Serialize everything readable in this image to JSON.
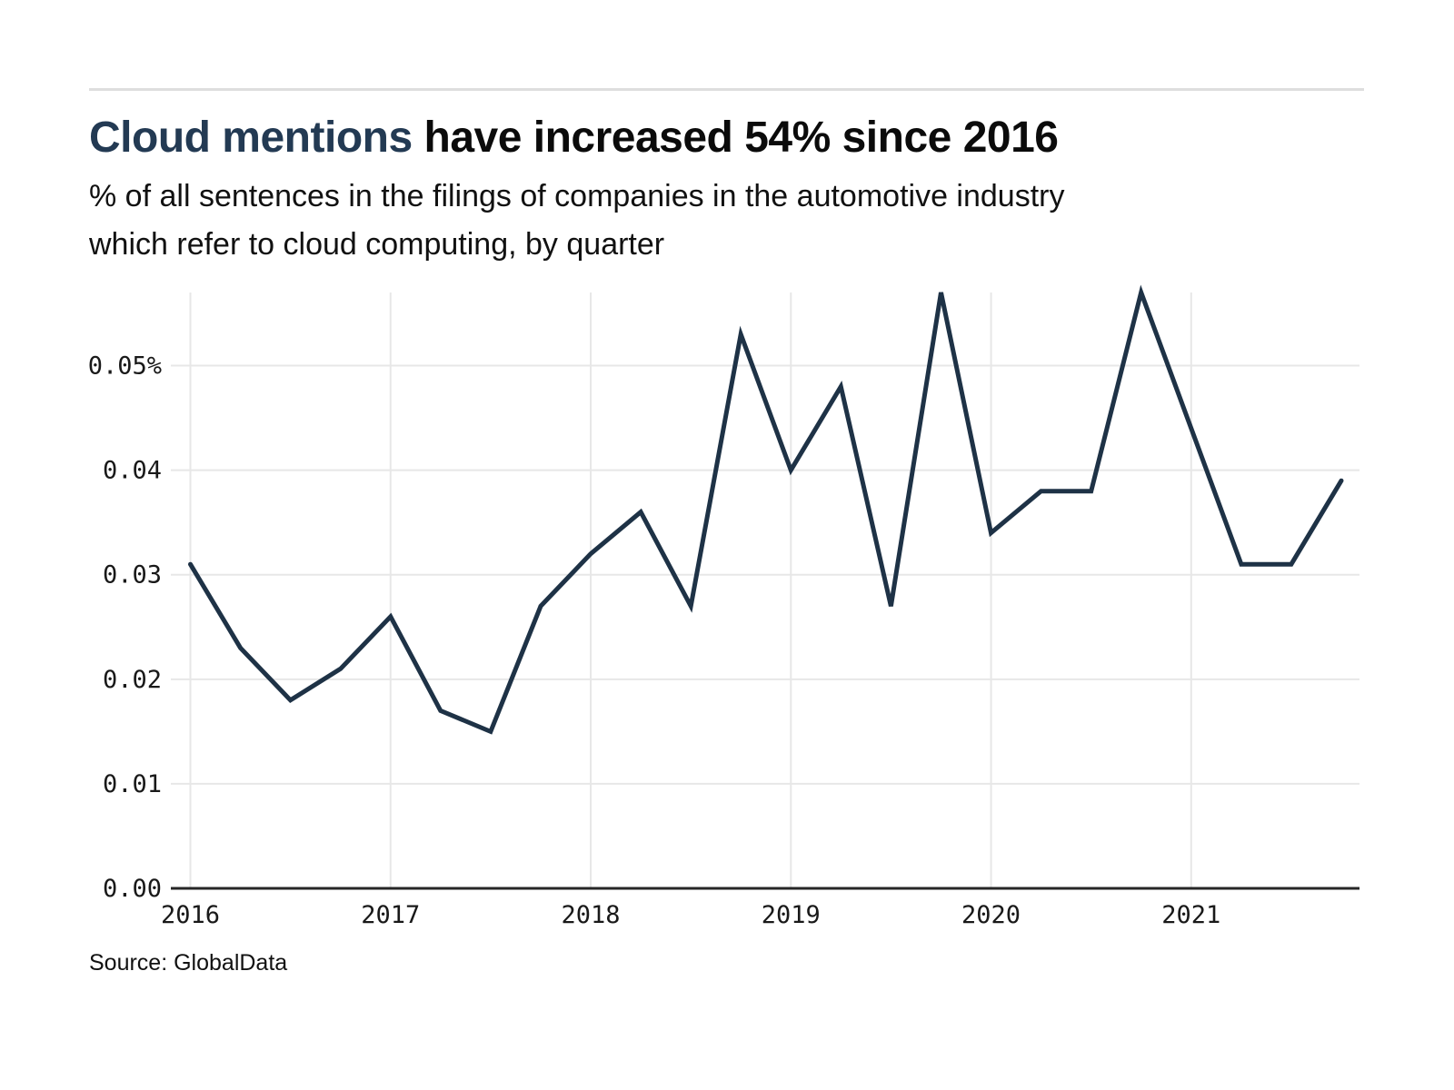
{
  "page": {
    "title_accent": "Cloud mentions",
    "title_rest": " have increased 54% since 2016",
    "subtitle_line1": "% of all sentences in the filings of companies in the automotive industry",
    "subtitle_line2": "which refer to cloud computing, by quarter",
    "source": "Source: GlobalData"
  },
  "colors": {
    "accent": "#233a53",
    "line": "#1e3246",
    "grid": "#e7e7e7",
    "axis": "#262626",
    "divider": "#dedede",
    "tick_text": "#191919"
  },
  "chart_data": {
    "type": "line",
    "title": "Cloud mentions have increased 54% since 2016",
    "subtitle": "% of all sentences in the filings of companies in the automotive industry which refer to cloud computing, by quarter",
    "source": "Source: GlobalData",
    "x": [
      "2016 Q1",
      "2016 Q2",
      "2016 Q3",
      "2016 Q4",
      "2017 Q1",
      "2017 Q2",
      "2017 Q3",
      "2017 Q4",
      "2018 Q1",
      "2018 Q2",
      "2018 Q3",
      "2018 Q4",
      "2019 Q1",
      "2019 Q2",
      "2019 Q3",
      "2019 Q4",
      "2020 Q1",
      "2020 Q2",
      "2020 Q3",
      "2020 Q4",
      "2021 Q1",
      "2021 Q2",
      "2021 Q3",
      "2021 Q4"
    ],
    "values": [
      0.031,
      0.023,
      0.018,
      0.021,
      0.026,
      0.017,
      0.015,
      0.027,
      0.032,
      0.036,
      0.027,
      0.053,
      0.04,
      0.048,
      0.027,
      0.057,
      0.034,
      0.038,
      0.038,
      0.057,
      0.044,
      0.031,
      0.031,
      0.039
    ],
    "x_tick_labels": [
      "2016",
      "2017",
      "2018",
      "2019",
      "2020",
      "2021"
    ],
    "x_tick_quarter_index": [
      0,
      4,
      8,
      12,
      16,
      20
    ],
    "y_ticks": [
      0.0,
      0.01,
      0.02,
      0.03,
      0.04,
      0.05
    ],
    "y_tick_labels": [
      "0.00",
      "0.01",
      "0.02",
      "0.03",
      "0.04",
      "0.05%"
    ],
    "ylim": [
      0,
      0.057
    ],
    "xlabel": "",
    "ylabel": "",
    "grid": true,
    "legend": false
  }
}
